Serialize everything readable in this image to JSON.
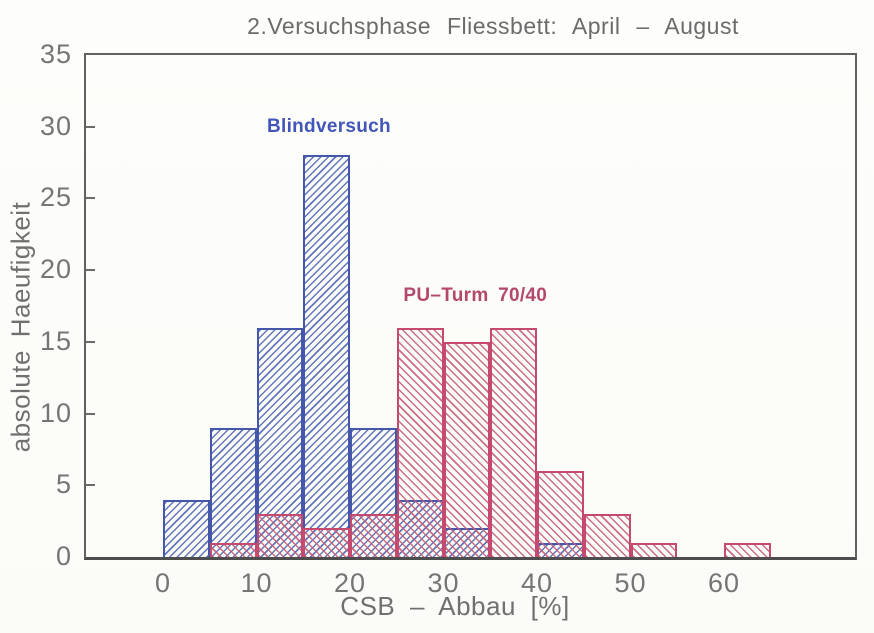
{
  "chart_data": {
    "type": "bar",
    "subtype": "overlaid-histogram",
    "title": "2.Versuchsphase Fliessbett: April – August",
    "xlabel": "CSB – Abbau [%]",
    "ylabel": "absolute Haeufigkeit",
    "bin_width": 5,
    "bin_starts": [
      0,
      5,
      10,
      15,
      20,
      25,
      30,
      35,
      40,
      45,
      50,
      55,
      60
    ],
    "series": [
      {
        "name": "Blindversuch",
        "color": "#4457aa",
        "hatch": "/",
        "values": [
          4,
          9,
          16,
          28,
          9,
          4,
          2,
          0,
          1,
          0,
          0,
          0,
          0
        ]
      },
      {
        "name": "PU–Turm 70/40",
        "color": "#c64a6e",
        "hatch": "\\",
        "values": [
          0,
          1,
          3,
          2,
          3,
          16,
          15,
          16,
          6,
          3,
          1,
          0,
          1
        ]
      }
    ],
    "annotations": [
      {
        "text": "Blindversuch",
        "color": "#4156b8",
        "x": 17.75,
        "y": 30
      },
      {
        "text": "PU–Turm 70/40",
        "color": "#b4486c",
        "x": 33.4,
        "y": 18.2
      }
    ],
    "xlim": [
      -8.2,
      74
    ],
    "ylim": [
      0,
      35
    ],
    "xticks": [
      0,
      10,
      20,
      30,
      40,
      50,
      60
    ],
    "yticks": [
      0,
      5,
      10,
      15,
      20,
      25,
      30,
      35
    ],
    "ytick_marks": [
      5,
      10,
      15,
      20,
      25,
      30
    ],
    "grid": false,
    "legend_position": "inline-annotations",
    "frame_color": "#5a5a5a",
    "text_color": "#707070"
  }
}
